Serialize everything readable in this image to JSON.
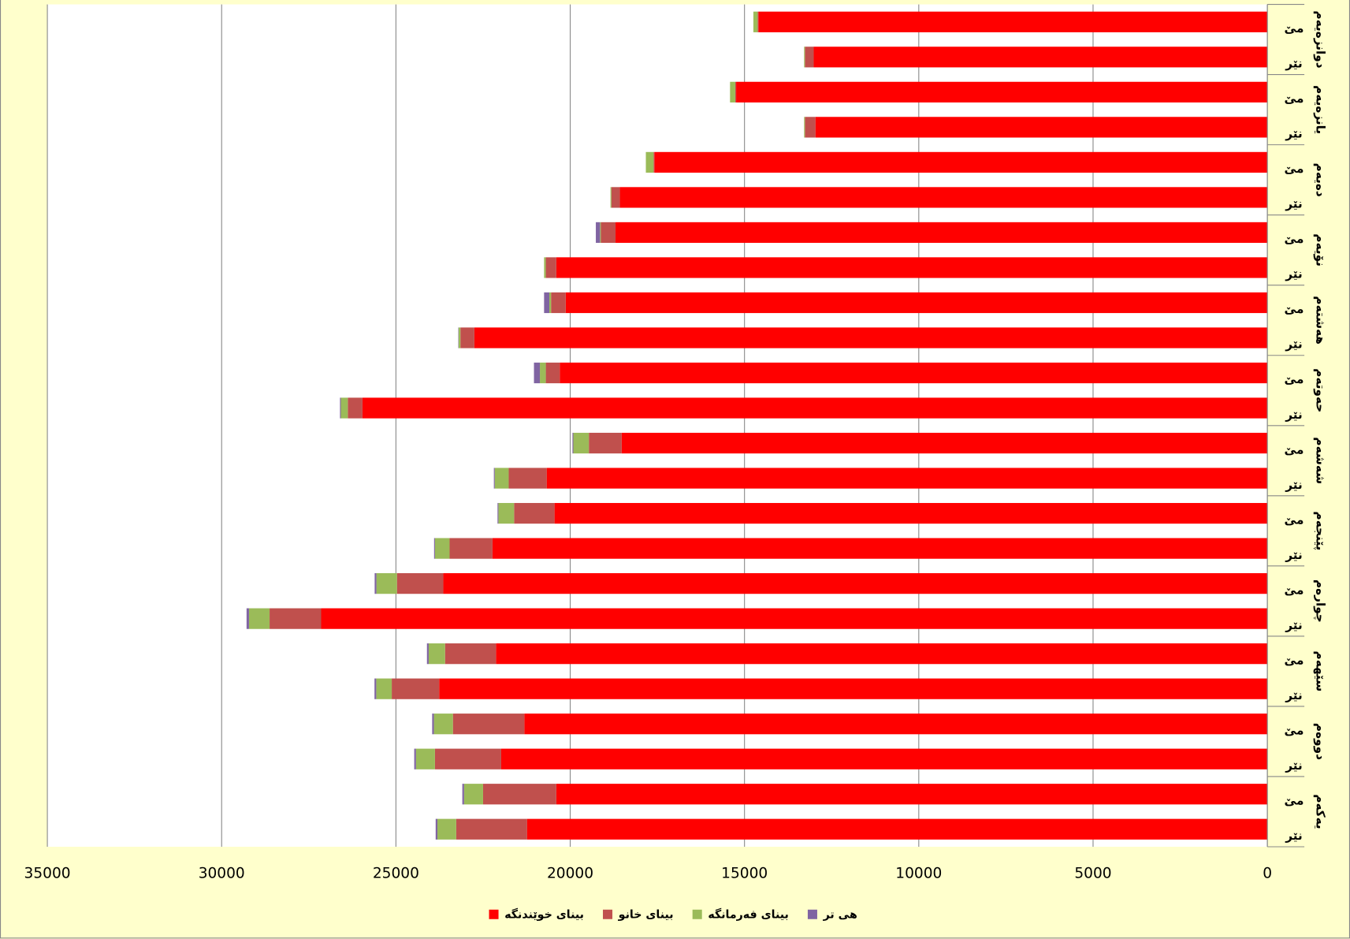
{
  "chart_data": {
    "type": "stacked-barh",
    "x_reversed": true,
    "categories": [
      "نێر",
      "مێ",
      "نێر",
      "مێ",
      "نێر",
      "مێ",
      "نێر",
      "مێ",
      "نێر",
      "مێ",
      "نێر",
      "مێ",
      "نێر",
      "مێ",
      "نێر",
      "مێ",
      "نێر",
      "مێ",
      "نێر",
      "مێ",
      "نێر",
      "مێ",
      "نێر",
      "مێ"
    ],
    "groups": [
      "یەکەم",
      "دووەم",
      "سێهەم",
      "چوارەم",
      "پێنجەم",
      "شەشەم",
      "حەوتەم",
      "هەشتەم",
      "نۆیەم",
      "دەیەم",
      "یانزەیەم",
      "دوانزەیەم"
    ],
    "series": [
      {
        "name": "بیناى خوێندنگە",
        "color": "#ff0000",
        "values": [
          21240,
          20400,
          21980,
          21315,
          23760,
          22130,
          27145,
          23640,
          22230,
          20450,
          20675,
          18525,
          25960,
          20300,
          22750,
          20130,
          20400,
          18700,
          18575,
          17585,
          12965,
          15240,
          13015,
          14600
        ]
      },
      {
        "name": "بیناى خانو",
        "color": "#c0504d",
        "values": [
          2030,
          2100,
          1900,
          2050,
          1360,
          1460,
          1480,
          1330,
          1230,
          1160,
          1090,
          940,
          420,
          400,
          400,
          420,
          300,
          420,
          245,
          25,
          300,
          25,
          250,
          25
        ]
      },
      {
        "name": "بیناى فەرمانگە",
        "color": "#9bbb59",
        "values": [
          540,
          545,
          545,
          545,
          445,
          470,
          590,
          590,
          420,
          450,
          400,
          445,
          200,
          170,
          50,
          50,
          50,
          25,
          25,
          220,
          25,
          150,
          25,
          120
        ]
      },
      {
        "name": "هى تر",
        "color": "#8064a2",
        "values": [
          50,
          50,
          50,
          50,
          50,
          50,
          70,
          50,
          25,
          25,
          25,
          25,
          25,
          170,
          10,
          150,
          0,
          120,
          0,
          0,
          0,
          0,
          0,
          0
        ]
      }
    ],
    "xlim": [
      0,
      35000
    ],
    "xticks": [
      0,
      5000,
      10000,
      15000,
      20000,
      25000,
      30000,
      35000
    ],
    "grid": true
  }
}
